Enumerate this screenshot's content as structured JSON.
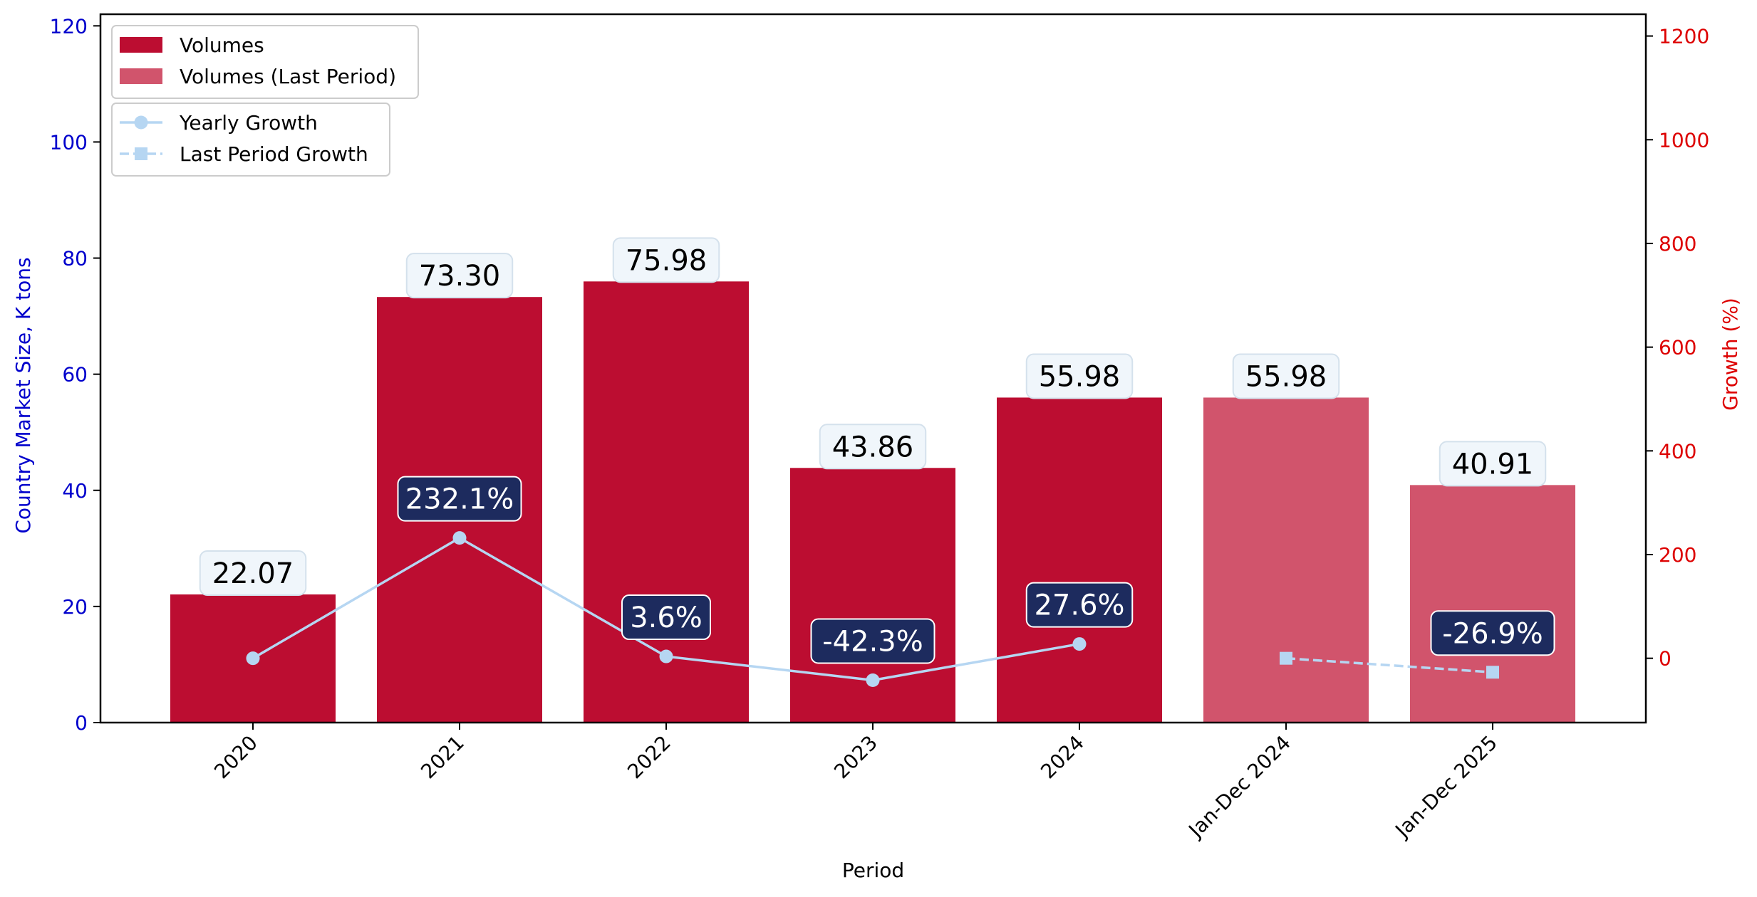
{
  "chart_data": {
    "type": "bar",
    "categories": [
      "2020",
      "2021",
      "2022",
      "2023",
      "2024",
      "Jan-Dec 2024",
      "Jan-Dec 2025"
    ],
    "series": [
      {
        "name": "Volumes",
        "kind": "bar",
        "axis": "left",
        "color": "#bc0d31",
        "values": [
          22.07,
          73.3,
          75.98,
          43.86,
          55.98,
          null,
          null
        ],
        "labels": [
          "22.07",
          "73.30",
          "75.98",
          "43.86",
          "55.98",
          "",
          ""
        ]
      },
      {
        "name": "Volumes (Last Period)",
        "kind": "bar",
        "axis": "left",
        "color": "#d1546c",
        "values": [
          null,
          null,
          null,
          null,
          null,
          55.98,
          40.91
        ],
        "labels": [
          "",
          "",
          "",
          "",
          "",
          "55.98",
          "40.91"
        ]
      },
      {
        "name": "Yearly Growth",
        "kind": "line",
        "axis": "right",
        "color": "#b6d6f2",
        "marker": "circle",
        "linestyle": "solid",
        "values": [
          0,
          232.1,
          3.6,
          -42.3,
          27.6,
          null,
          null
        ],
        "labels": [
          "",
          "232.1%",
          "3.6%",
          "-42.3%",
          "27.6%",
          "",
          ""
        ]
      },
      {
        "name": "Last Period Growth",
        "kind": "line",
        "axis": "right",
        "color": "#b6d6f2",
        "marker": "square",
        "linestyle": "dashed",
        "values": [
          null,
          null,
          null,
          null,
          null,
          0,
          -26.9
        ],
        "labels": [
          "",
          "",
          "",
          "",
          "",
          "",
          "-26.9%"
        ]
      }
    ],
    "xlabel": "Period",
    "ylabel": "Country Market Size, K tons",
    "y2label": "Growth (%)",
    "ylim": [
      0,
      122
    ],
    "y2lim": [
      -124,
      1242
    ],
    "yticks": [
      "0",
      "20",
      "40",
      "60",
      "80",
      "100",
      "120"
    ],
    "y2ticks": [
      "0",
      "200",
      "400",
      "600",
      "800",
      "1000",
      "1200"
    ],
    "grid": false,
    "legend_bars_position": "upper-left",
    "legend_lines_position": "upper-left (below bar legend)",
    "colors": {
      "left_axis": "#0000cc",
      "right_axis": "#dd0000",
      "growth_label_bg": "#1d2b5e",
      "value_label_bg": "#f0f6fb"
    }
  }
}
